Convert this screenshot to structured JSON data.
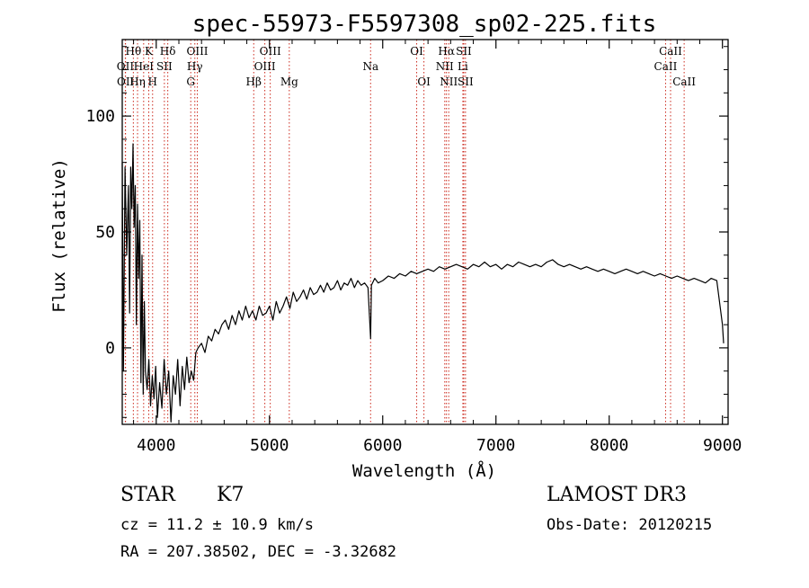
{
  "chart_data": {
    "type": "line",
    "title": "spec-55973-F5597308_sp02-225.fits",
    "xlabel": "Wavelength (Å)",
    "ylabel": "Flux (relative)",
    "xlim": [
      3700,
      9050
    ],
    "ylim": [
      -33,
      133
    ],
    "xticks": [
      4000,
      5000,
      6000,
      7000,
      8000,
      9000
    ],
    "yticks": [
      0,
      50,
      100
    ],
    "series": [
      {
        "name": "flux",
        "x": [
          3700,
          3710,
          3725,
          3740,
          3755,
          3765,
          3775,
          3785,
          3795,
          3805,
          3815,
          3825,
          3835,
          3845,
          3855,
          3865,
          3875,
          3885,
          3895,
          3905,
          3920,
          3935,
          3950,
          3965,
          3980,
          3995,
          4010,
          4030,
          4050,
          4070,
          4090,
          4110,
          4130,
          4150,
          4170,
          4190,
          4210,
          4230,
          4250,
          4270,
          4290,
          4310,
          4330,
          4350,
          4370,
          4400,
          4430,
          4460,
          4490,
          4520,
          4550,
          4580,
          4610,
          4640,
          4670,
          4700,
          4730,
          4760,
          4790,
          4820,
          4850,
          4880,
          4910,
          4940,
          4970,
          5000,
          5030,
          5060,
          5090,
          5120,
          5150,
          5180,
          5210,
          5240,
          5270,
          5300,
          5330,
          5360,
          5390,
          5420,
          5450,
          5480,
          5510,
          5540,
          5570,
          5600,
          5630,
          5660,
          5690,
          5720,
          5750,
          5780,
          5810,
          5840,
          5870,
          5893,
          5900,
          5930,
          5960,
          6000,
          6050,
          6100,
          6150,
          6200,
          6250,
          6300,
          6350,
          6400,
          6450,
          6500,
          6550,
          6600,
          6650,
          6700,
          6750,
          6800,
          6850,
          6900,
          6950,
          7000,
          7050,
          7100,
          7150,
          7200,
          7250,
          7300,
          7350,
          7400,
          7450,
          7500,
          7550,
          7600,
          7650,
          7700,
          7750,
          7800,
          7850,
          7900,
          7950,
          8000,
          8050,
          8100,
          8150,
          8200,
          8250,
          8300,
          8350,
          8400,
          8450,
          8500,
          8550,
          8600,
          8650,
          8700,
          8750,
          8800,
          8850,
          8900,
          8950,
          9000,
          9010
        ],
        "y": [
          80,
          -10,
          78,
          40,
          70,
          15,
          78,
          60,
          88,
          52,
          70,
          10,
          62,
          30,
          55,
          -15,
          40,
          -20,
          20,
          -10,
          -18,
          -5,
          -25,
          -12,
          -22,
          -8,
          -30,
          -15,
          -26,
          -5,
          -20,
          -10,
          -32,
          -12,
          -20,
          -5,
          -25,
          -8,
          -18,
          -4,
          -15,
          -10,
          -14,
          -2,
          0,
          2,
          -2,
          5,
          3,
          8,
          6,
          10,
          12,
          8,
          14,
          10,
          16,
          12,
          18,
          13,
          16,
          12,
          18,
          14,
          15,
          18,
          12,
          20,
          15,
          18,
          22,
          17,
          24,
          20,
          22,
          25,
          21,
          26,
          23,
          24,
          27,
          24,
          28,
          25,
          26,
          29,
          25,
          28,
          27,
          30,
          26,
          29,
          27,
          28,
          26,
          4,
          27,
          30,
          28,
          29,
          31,
          30,
          32,
          31,
          33,
          32,
          33,
          34,
          33,
          35,
          34,
          35,
          36,
          35,
          34,
          36,
          35,
          37,
          35,
          36,
          34,
          36,
          35,
          37,
          36,
          35,
          36,
          35,
          37,
          38,
          36,
          35,
          36,
          35,
          34,
          35,
          34,
          33,
          34,
          33,
          32,
          33,
          34,
          33,
          32,
          33,
          32,
          31,
          32,
          31,
          30,
          31,
          30,
          29,
          30,
          29,
          28,
          30,
          29,
          10,
          2
        ]
      }
    ],
    "line_markers": [
      {
        "label": "Hθ",
        "x": 3798,
        "row": 1
      },
      {
        "label": "OII",
        "x": 3727,
        "row": 2
      },
      {
        "label": "OII",
        "x": 3729,
        "row": 3
      },
      {
        "label": "K",
        "x": 3934,
        "row": 1
      },
      {
        "label": "HeI",
        "x": 3889,
        "row": 2
      },
      {
        "label": "Hη",
        "x": 3835,
        "row": 3
      },
      {
        "label": "Hδ",
        "x": 4102,
        "row": 1
      },
      {
        "label": "SII",
        "x": 4072,
        "row": 2
      },
      {
        "label": "H",
        "x": 3968,
        "row": 3
      },
      {
        "label": "OIII",
        "x": 4363,
        "row": 1
      },
      {
        "label": "Hγ",
        "x": 4341,
        "row": 2
      },
      {
        "label": "G",
        "x": 4305,
        "row": 3
      },
      {
        "label": "OIII",
        "x": 5007,
        "row": 1
      },
      {
        "label": "OIII",
        "x": 4959,
        "row": 2
      },
      {
        "label": "Hβ",
        "x": 4861,
        "row": 3
      },
      {
        "label": "Mg",
        "x": 5175,
        "row": 3
      },
      {
        "label": "Na",
        "x": 5893,
        "row": 2
      },
      {
        "label": "OI",
        "x": 6300,
        "row": 1
      },
      {
        "label": "OI",
        "x": 6364,
        "row": 3
      },
      {
        "label": "Hα",
        "x": 6563,
        "row": 1
      },
      {
        "label": "NII",
        "x": 6548,
        "row": 2
      },
      {
        "label": "NII",
        "x": 6583,
        "row": 3
      },
      {
        "label": "SII",
        "x": 6716,
        "row": 1
      },
      {
        "label": "Li",
        "x": 6708,
        "row": 2
      },
      {
        "label": "SII",
        "x": 6731,
        "row": 3
      },
      {
        "label": "CaII",
        "x": 8542,
        "row": 1
      },
      {
        "label": "CaII",
        "x": 8498,
        "row": 2
      },
      {
        "label": "CaII",
        "x": 8662,
        "row": 3
      }
    ],
    "marker_color": "#cc2a1e",
    "line_color": "#000000"
  },
  "info": {
    "class": "STAR",
    "subclass": "K7",
    "survey": "LAMOST DR3",
    "cz": "cz = 11.2 ± 10.9 km/s",
    "obs_date": "Obs-Date: 20120215",
    "coords": "RA = 207.38502, DEC =  -3.32682"
  }
}
